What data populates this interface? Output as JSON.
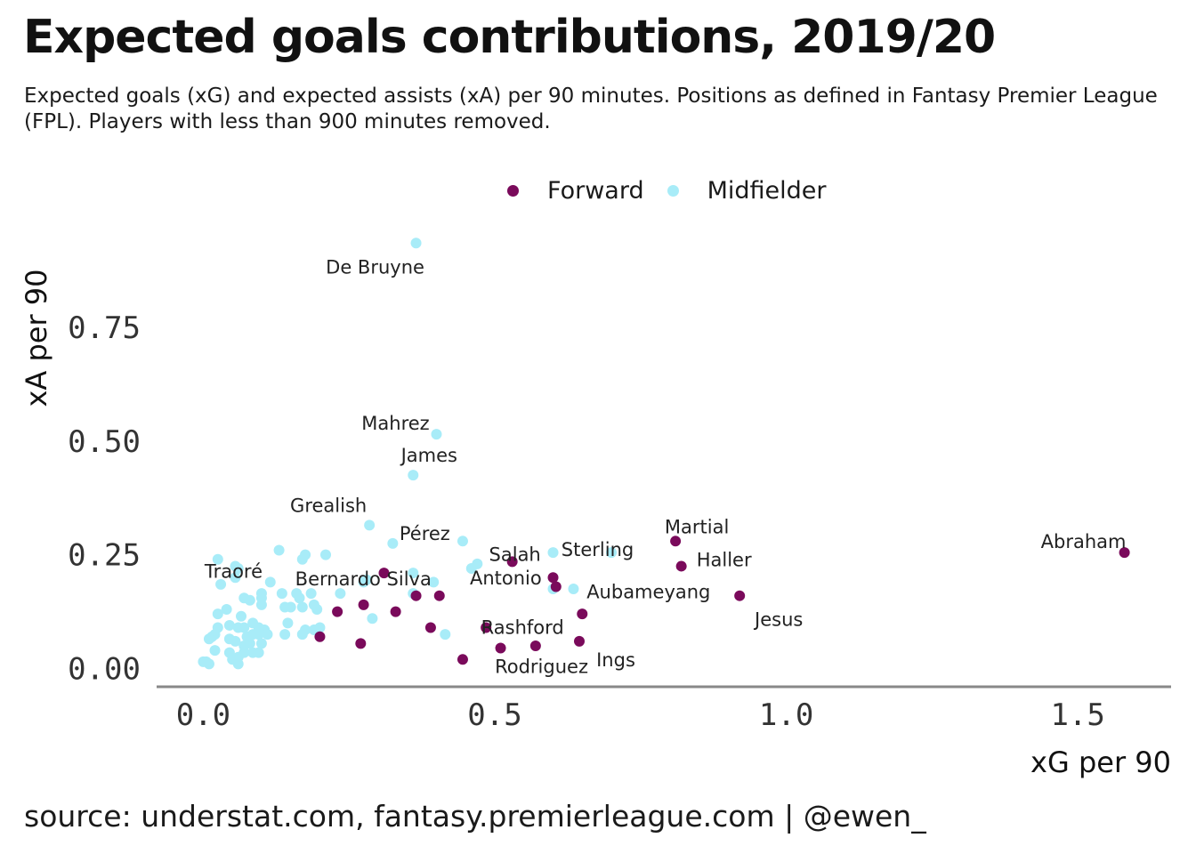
{
  "title": "Expected goals contributions, 2019/20",
  "subtitle": "Expected goals (xG) and expected assists (xA) per 90 minutes. Positions as defined in Fantasy Premier League (FPL). Players with less than 900 minutes removed.",
  "caption": "source: understat.com, fantasy.premierleague.com | @ewen_",
  "colors": {
    "Forward": "#7a0a5b",
    "Midfielder": "#a8ecf8",
    "axis": "#888888"
  },
  "chart_data": {
    "type": "scatter",
    "title": "Expected goals contributions, 2019/20",
    "xlabel": "xG per 90",
    "ylabel": "xA per 90",
    "xlim": [
      -0.08,
      1.66
    ],
    "ylim": [
      -0.04,
      1.0
    ],
    "xticks": [
      0.0,
      0.5,
      1.0,
      1.5
    ],
    "xtick_labels": [
      "0.0",
      "0.5",
      "1.0",
      "1.5"
    ],
    "yticks": [
      0.0,
      0.25,
      0.5,
      0.75
    ],
    "ytick_labels": [
      "0.00",
      "0.25",
      "0.50",
      "0.75"
    ],
    "grid": false,
    "legend": {
      "placement": "top-center",
      "entries": [
        "Forward",
        "Midfielder"
      ]
    },
    "series": [
      {
        "name": "Forward",
        "points": [
          {
            "x": 1.58,
            "y": 0.255,
            "label": "Abraham"
          },
          {
            "x": 0.92,
            "y": 0.16,
            "label": "Jesus"
          },
          {
            "x": 0.81,
            "y": 0.28,
            "label": "Martial"
          },
          {
            "x": 0.82,
            "y": 0.225,
            "label": "Haller"
          },
          {
            "x": 0.6,
            "y": 0.2
          },
          {
            "x": 0.605,
            "y": 0.18,
            "label": "Aubameyang"
          },
          {
            "x": 0.53,
            "y": 0.235,
            "label": "Salah"
          },
          {
            "x": 0.65,
            "y": 0.12
          },
          {
            "x": 0.645,
            "y": 0.06,
            "label": "Ings"
          },
          {
            "x": 0.57,
            "y": 0.05
          },
          {
            "x": 0.51,
            "y": 0.045,
            "label": "Rodriguez"
          },
          {
            "x": 0.485,
            "y": 0.09,
            "label": "Rashford"
          },
          {
            "x": 0.445,
            "y": 0.02
          },
          {
            "x": 0.405,
            "y": 0.16
          },
          {
            "x": 0.39,
            "y": 0.09
          },
          {
            "x": 0.365,
            "y": 0.16
          },
          {
            "x": 0.33,
            "y": 0.125
          },
          {
            "x": 0.31,
            "y": 0.21
          },
          {
            "x": 0.275,
            "y": 0.14
          },
          {
            "x": 0.27,
            "y": 0.055
          },
          {
            "x": 0.23,
            "y": 0.125
          },
          {
            "x": 0.2,
            "y": 0.07
          }
        ]
      },
      {
        "name": "Midfielder",
        "points": [
          {
            "x": 0.365,
            "y": 0.935,
            "label": "De Bruyne"
          },
          {
            "x": 0.4,
            "y": 0.515,
            "label": "Mahrez"
          },
          {
            "x": 0.36,
            "y": 0.425,
            "label": "James"
          },
          {
            "x": 0.285,
            "y": 0.315,
            "label": "Grealish"
          },
          {
            "x": 0.325,
            "y": 0.275,
            "label": "Pérez"
          },
          {
            "x": 0.6,
            "y": 0.255,
            "label": "Sterling"
          },
          {
            "x": 0.7,
            "y": 0.255
          },
          {
            "x": 0.635,
            "y": 0.175
          },
          {
            "x": 0.6,
            "y": 0.175
          },
          {
            "x": 0.47,
            "y": 0.23,
            "label": "Antonio"
          },
          {
            "x": 0.46,
            "y": 0.22
          },
          {
            "x": 0.445,
            "y": 0.28
          },
          {
            "x": 0.395,
            "y": 0.19
          },
          {
            "x": 0.36,
            "y": 0.21,
            "label": "Bernardo Silva"
          },
          {
            "x": 0.36,
            "y": 0.165
          },
          {
            "x": 0.415,
            "y": 0.075
          },
          {
            "x": 0.29,
            "y": 0.11
          },
          {
            "x": 0.28,
            "y": 0.195
          },
          {
            "x": 0.275,
            "y": 0.19
          },
          {
            "x": 0.235,
            "y": 0.165
          },
          {
            "x": 0.21,
            "y": 0.25
          },
          {
            "x": 0.175,
            "y": 0.25
          },
          {
            "x": 0.17,
            "y": 0.24
          },
          {
            "x": 0.13,
            "y": 0.26
          },
          {
            "x": 0.115,
            "y": 0.19
          },
          {
            "x": 0.135,
            "y": 0.165
          },
          {
            "x": 0.16,
            "y": 0.165
          },
          {
            "x": 0.165,
            "y": 0.155
          },
          {
            "x": 0.185,
            "y": 0.165
          },
          {
            "x": 0.19,
            "y": 0.14
          },
          {
            "x": 0.195,
            "y": 0.13
          },
          {
            "x": 0.17,
            "y": 0.135
          },
          {
            "x": 0.14,
            "y": 0.135
          },
          {
            "x": 0.15,
            "y": 0.135
          },
          {
            "x": 0.145,
            "y": 0.1
          },
          {
            "x": 0.175,
            "y": 0.085
          },
          {
            "x": 0.19,
            "y": 0.085
          },
          {
            "x": 0.2,
            "y": 0.09
          },
          {
            "x": 0.14,
            "y": 0.075
          },
          {
            "x": 0.17,
            "y": 0.075
          },
          {
            "x": 0.025,
            "y": 0.24
          },
          {
            "x": 0.03,
            "y": 0.185
          },
          {
            "x": 0.055,
            "y": 0.225,
            "label": "Traoré"
          },
          {
            "x": 0.06,
            "y": 0.22
          },
          {
            "x": 0.055,
            "y": 0.2
          },
          {
            "x": 0.07,
            "y": 0.155
          },
          {
            "x": 0.08,
            "y": 0.15
          },
          {
            "x": 0.1,
            "y": 0.165
          },
          {
            "x": 0.1,
            "y": 0.155
          },
          {
            "x": 0.1,
            "y": 0.14
          },
          {
            "x": 0.04,
            "y": 0.13
          },
          {
            "x": 0.025,
            "y": 0.12
          },
          {
            "x": 0.065,
            "y": 0.115
          },
          {
            "x": 0.085,
            "y": 0.1
          },
          {
            "x": 0.095,
            "y": 0.09
          },
          {
            "x": 0.105,
            "y": 0.085
          },
          {
            "x": 0.07,
            "y": 0.09
          },
          {
            "x": 0.06,
            "y": 0.09
          },
          {
            "x": 0.045,
            "y": 0.095
          },
          {
            "x": 0.025,
            "y": 0.09
          },
          {
            "x": 0.02,
            "y": 0.075
          },
          {
            "x": 0.015,
            "y": 0.07
          },
          {
            "x": 0.01,
            "y": 0.065
          },
          {
            "x": 0.045,
            "y": 0.065
          },
          {
            "x": 0.055,
            "y": 0.06
          },
          {
            "x": 0.075,
            "y": 0.07
          },
          {
            "x": 0.085,
            "y": 0.075
          },
          {
            "x": 0.095,
            "y": 0.075
          },
          {
            "x": 0.11,
            "y": 0.075
          },
          {
            "x": 0.07,
            "y": 0.05
          },
          {
            "x": 0.08,
            "y": 0.055
          },
          {
            "x": 0.1,
            "y": 0.055
          },
          {
            "x": 0.02,
            "y": 0.04
          },
          {
            "x": 0.045,
            "y": 0.035
          },
          {
            "x": 0.05,
            "y": 0.02
          },
          {
            "x": 0.06,
            "y": 0.025
          },
          {
            "x": 0.07,
            "y": 0.035
          },
          {
            "x": 0.085,
            "y": 0.035
          },
          {
            "x": 0.095,
            "y": 0.035
          },
          {
            "x": 0.06,
            "y": 0.01
          },
          {
            "x": 0.0,
            "y": 0.015
          },
          {
            "x": 0.01,
            "y": 0.01
          },
          {
            "x": 0.005,
            "y": 0.015
          }
        ]
      }
    ]
  }
}
